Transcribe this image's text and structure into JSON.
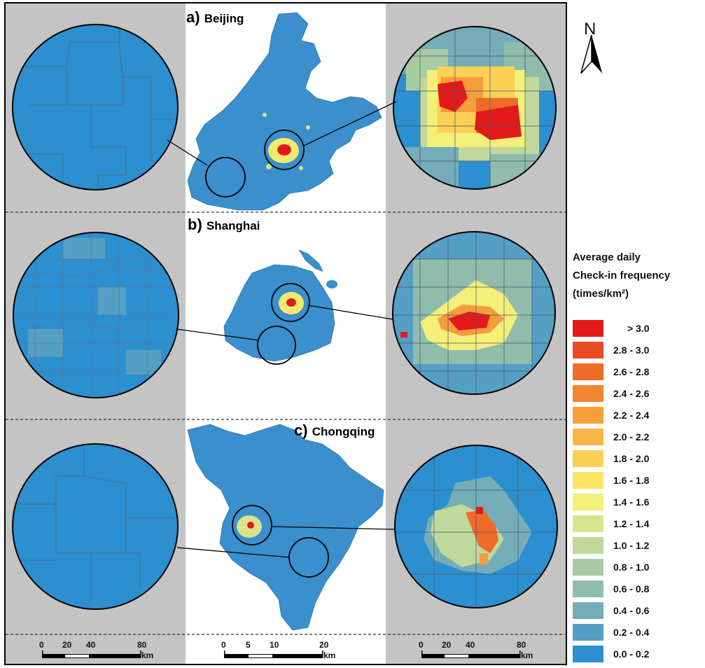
{
  "panels": [
    {
      "letter": "a)",
      "city": "Beijing"
    },
    {
      "letter": "b)",
      "city": "Shanghai"
    },
    {
      "letter": "c)",
      "city": "Chongqing"
    }
  ],
  "north": "N",
  "legend": {
    "title_line1": "Average daily",
    "title_line2": "Check-in frequency",
    "title_line3": "(times/km²)",
    "items": [
      {
        "label": "> 3.0",
        "color": "#e31a1c"
      },
      {
        "label": "2.8 - 3.0",
        "color": "#ea4a22"
      },
      {
        "label": "2.6 - 2.8",
        "color": "#ef6b2a"
      },
      {
        "label": "2.4 - 2.6",
        "color": "#f28433"
      },
      {
        "label": "2.2 - 2.4",
        "color": "#f69d3c"
      },
      {
        "label": "2.0 - 2.2",
        "color": "#f9b648"
      },
      {
        "label": "1.8 - 2.0",
        "color": "#fbd055"
      },
      {
        "label": "1.6 - 1.8",
        "color": "#fbe563"
      },
      {
        "label": "1.4 - 1.6",
        "color": "#f3ef78"
      },
      {
        "label": "1.2 - 1.4",
        "color": "#d8e48e"
      },
      {
        "label": "1.0 - 1.2",
        "color": "#c0d89a"
      },
      {
        "label": "0.8 - 1.0",
        "color": "#a8cba3"
      },
      {
        "label": "0.6 - 0.8",
        "color": "#8fbcab"
      },
      {
        "label": "0.4 - 0.6",
        "color": "#74adb8"
      },
      {
        "label": "0.2 - 0.4",
        "color": "#559fc4"
      },
      {
        "label": "0.0 - 0.2",
        "color": "#2b8fd0"
      }
    ]
  },
  "scales": [
    {
      "ticks": [
        "0",
        "20",
        "40",
        "80"
      ],
      "unit": "km"
    },
    {
      "ticks": [
        "0",
        "5",
        "10",
        "20"
      ],
      "unit": "km"
    },
    {
      "ticks": [
        "0",
        "20",
        "40",
        "80"
      ],
      "unit": "km"
    }
  ]
}
